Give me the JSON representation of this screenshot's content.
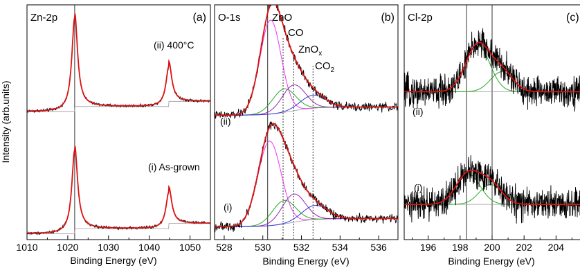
{
  "figure": {
    "ylabel": "Intensity (arb.units)"
  },
  "chart_data": [
    {
      "type": "line",
      "panel_label": "(a)",
      "core_level": "Zn-2p",
      "xlabel": "Binding Energy (eV)",
      "ylabel": "Intensity (arb.units)",
      "xlim": [
        1010,
        1055
      ],
      "ylim": [
        0,
        10
      ],
      "xticks": [
        1010,
        1020,
        1030,
        1040,
        1050
      ],
      "xtick_labels": [
        "1010",
        "1020",
        "1030",
        "1040",
        "1050"
      ],
      "yticks_shown": false,
      "reference_lines": [
        {
          "x": 1021.7,
          "style": "solid"
        }
      ],
      "series": [
        {
          "name": "(ii) 400°C",
          "baseline": 5.45,
          "background_rise": 0.22,
          "peaks": [
            {
              "center": 1021.7,
              "height": 4.0,
              "width": 0.85
            },
            {
              "center": 1044.8,
              "height": 1.7,
              "width": 0.85
            }
          ]
        },
        {
          "name": "(i) As-grown",
          "baseline": 0.25,
          "background_rise": 0.22,
          "peaks": [
            {
              "center": 1021.7,
              "height": 3.55,
              "width": 0.85
            },
            {
              "center": 1044.8,
              "height": 1.55,
              "width": 0.85
            }
          ]
        }
      ]
    },
    {
      "type": "line",
      "panel_label": "(b)",
      "core_level": "O-1s",
      "xlabel": "Binding Energy (eV)",
      "xlim": [
        527.5,
        537
      ],
      "ylim": [
        0,
        10
      ],
      "xticks": [
        528,
        530,
        532,
        534,
        536
      ],
      "xtick_labels": [
        "528",
        "530",
        "532",
        "534",
        "536"
      ],
      "yticks_shown": false,
      "reference_lines": [
        {
          "x": 530.25,
          "style": "solid",
          "label": "ZnO"
        },
        {
          "x": 531.05,
          "style": "dotted",
          "label": "CO"
        },
        {
          "x": 531.6,
          "style": "dotted",
          "label": "ZnOx"
        },
        {
          "x": 532.6,
          "style": "dotted",
          "label": "CO2"
        }
      ],
      "series": [
        {
          "name": "(ii)",
          "baseline": 5.3,
          "components": [
            {
              "name": "ZnO",
              "center": 530.4,
              "height": 4.0,
              "width": 0.55,
              "color": "#ee33ee"
            },
            {
              "name": "CO",
              "center": 531.1,
              "height": 1.0,
              "width": 0.6,
              "color": "#22aa22"
            },
            {
              "name": "ZnOx",
              "center": 531.6,
              "height": 1.1,
              "width": 0.6,
              "color": "#9922bb"
            },
            {
              "name": "CO2",
              "center": 532.6,
              "height": 0.55,
              "width": 0.65,
              "color": "#3333dd"
            }
          ]
        },
        {
          "name": "(i)",
          "baseline": 0.55,
          "components": [
            {
              "name": "ZnO",
              "center": 530.35,
              "height": 3.6,
              "width": 0.6,
              "color": "#ee33ee"
            },
            {
              "name": "CO",
              "center": 531.1,
              "height": 1.0,
              "width": 0.6,
              "color": "#22aa22"
            },
            {
              "name": "ZnOx",
              "center": 531.6,
              "height": 1.2,
              "width": 0.6,
              "color": "#9922bb"
            },
            {
              "name": "CO2",
              "center": 532.7,
              "height": 0.6,
              "width": 0.65,
              "color": "#3333dd"
            }
          ]
        }
      ]
    },
    {
      "type": "line",
      "panel_label": "(c)",
      "core_level": "Cl-2p",
      "xlabel": "Binding Energy (eV)",
      "xlim": [
        194.5,
        205.5
      ],
      "ylim": [
        0,
        10
      ],
      "xticks": [
        196,
        198,
        200,
        202,
        204
      ],
      "xtick_labels": [
        "196",
        "198",
        "200",
        "202",
        "204"
      ],
      "yticks_shown": false,
      "reference_lines": [
        {
          "x": 198.4,
          "style": "solid"
        },
        {
          "x": 200.0,
          "style": "solid"
        }
      ],
      "series": [
        {
          "name": "(ii)",
          "baseline": 6.3,
          "components": [
            {
              "center": 199.1,
              "height": 2.0,
              "width": 0.75,
              "color": "#22aa22"
            },
            {
              "center": 200.6,
              "height": 0.85,
              "width": 0.7,
              "color": "#22aa22"
            }
          ]
        },
        {
          "name": "(i)",
          "baseline": 1.5,
          "components": [
            {
              "center": 198.5,
              "height": 1.3,
              "width": 0.75,
              "color": "#22aa22"
            },
            {
              "center": 199.9,
              "height": 0.85,
              "width": 0.7,
              "color": "#22aa22"
            }
          ]
        }
      ]
    }
  ],
  "colors": {
    "raw_data": "#000000",
    "fit_envelope": "#dd1111",
    "background": "#999999"
  }
}
